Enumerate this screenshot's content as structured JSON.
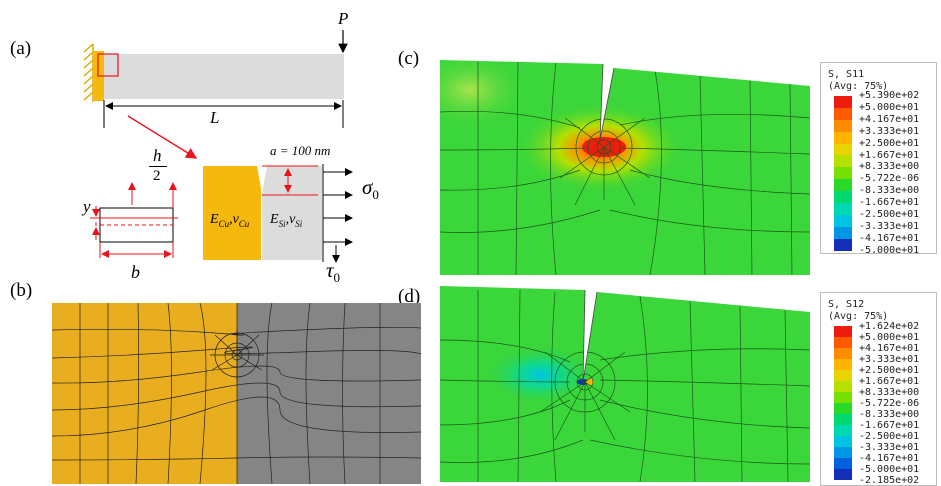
{
  "panels": {
    "a": {
      "label": "(a)"
    },
    "b": {
      "label": "(b)"
    },
    "c": {
      "label": "(c)"
    },
    "d": {
      "label": "(d)"
    }
  },
  "diagram_a": {
    "load_P": "P",
    "length_L": "L",
    "crack_length": "a = 100 nm",
    "h_num": "h",
    "h_den": "2",
    "y_label": "y",
    "b_label": "b",
    "sigma": "σ",
    "sigma_sub": "0",
    "tau": "τ",
    "tau_sub": "0",
    "cu_E": "E",
    "cu_E_sub": "Cu",
    "cu_nu": "ν",
    "cu_nu_sub": "Cu",
    "si_E": "E",
    "si_E_sub": "Si",
    "si_nu": "ν",
    "si_nu_sub": "Si",
    "colors": {
      "copper": "#f5b80f",
      "silicon": "#dcdcdc",
      "annot": "#e8131b"
    }
  },
  "legend_c": {
    "title1": "S, S11",
    "title2": "(Avg: 75%)",
    "values": [
      "+5.390e+02",
      "+5.000e+01",
      "+4.167e+01",
      "+3.333e+01",
      "+2.500e+01",
      "+1.667e+01",
      "+8.333e+00",
      "-5.722e-06",
      "-8.333e+00",
      "-1.667e+01",
      "-2.500e+01",
      "-3.333e+01",
      "-4.167e+01",
      "-5.000e+01"
    ]
  },
  "legend_d": {
    "title1": "S, S12",
    "title2": "(Avg: 75%)",
    "values": [
      "+1.624e+02",
      "+5.000e+01",
      "+4.167e+01",
      "+3.333e+01",
      "+2.500e+01",
      "+1.667e+01",
      "+8.333e+00",
      "-5.722e-06",
      "-8.333e+00",
      "-1.667e+01",
      "-2.500e+01",
      "-3.333e+01",
      "-4.167e+01",
      "-5.000e+01",
      "-2.185e+02"
    ]
  },
  "contour_colors": [
    "#ee1c0c",
    "#ff5a00",
    "#ff8c00",
    "#ffb400",
    "#e8d400",
    "#b5e000",
    "#77e000",
    "#2bd92b",
    "#00d870",
    "#00d8b0",
    "#00c4e0",
    "#0096e8",
    "#0060e0",
    "#1530b8"
  ],
  "mesh_colors": {
    "copper": "#e9ae1f",
    "silicon": "#858585",
    "mesh_line": "#222222",
    "field_green": "#3ad63a"
  }
}
